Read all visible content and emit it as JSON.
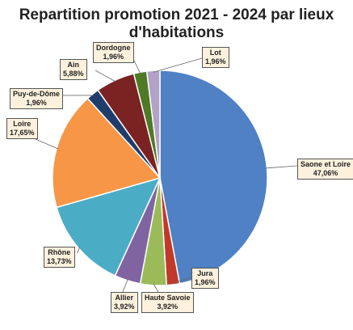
{
  "chart_data": {
    "type": "pie",
    "title": "Repartition promotion 2021 - 2024 par lieux d'habitations",
    "title_lines": [
      "Repartition promotion 2021 - 2024 par lieux",
      "d'habitations"
    ],
    "slices": [
      {
        "name": "Saone et Loire",
        "value": 47.06,
        "label": "47,06%",
        "color": "#4f81c4"
      },
      {
        "name": "Jura",
        "value": 1.96,
        "label": "1,96%",
        "color": "#c0392b"
      },
      {
        "name": "Haute Savoie",
        "value": 3.92,
        "label": "3,92%",
        "color": "#9bbb59"
      },
      {
        "name": "Allier",
        "value": 3.92,
        "label": "3,92%",
        "color": "#8064a2"
      },
      {
        "name": "Rhône",
        "value": 13.73,
        "label": "13,73%",
        "color": "#4bacc6"
      },
      {
        "name": "Loire",
        "value": 17.65,
        "label": "17,65%",
        "color": "#f79646"
      },
      {
        "name": "Puy-de-Dôme",
        "value": 1.96,
        "label": "1,96%",
        "color": "#1f3d6b"
      },
      {
        "name": "Ain",
        "value": 5.88,
        "label": "5,88%",
        "color": "#7b2323"
      },
      {
        "name": "Dordogne",
        "value": 1.96,
        "label": "1,96%",
        "color": "#4e7a25"
      },
      {
        "name": "Lot",
        "value": 1.96,
        "label": "1,96%",
        "color": "#b3a2c7"
      }
    ],
    "start": "top",
    "direction": "clockwise",
    "labels": "outside-with-leader-lines",
    "legend": "none"
  }
}
